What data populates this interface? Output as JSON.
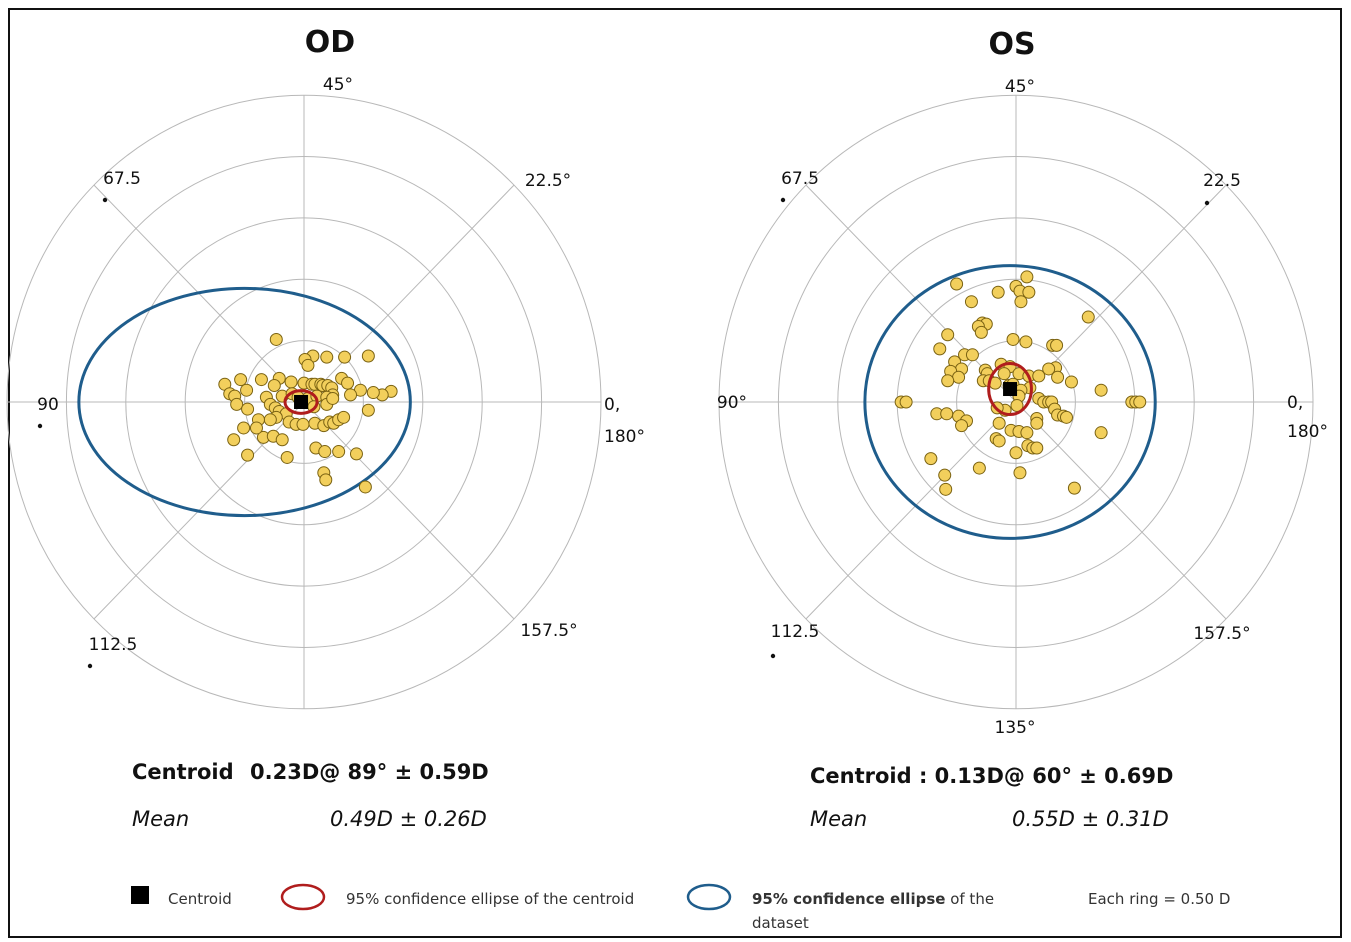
{
  "chart_data": [
    {
      "type": "scatter",
      "coordinate_system": "double-angle polar (astigmatism vector plot)",
      "title": "OD",
      "angle_labels": {
        "a0": "0,",
        "a180": "180°",
        "a22_5": "22.5°",
        "a45": "45°",
        "a67_5": "67.5",
        "a90": "90",
        "a112_5": "112.5",
        "a135": "",
        "a157_5": "157.5°"
      },
      "rings": 5,
      "ring_step_D": 0.5,
      "centroid": {
        "x": -0.03,
        "y": 0.0
      },
      "centroid_ellipse": {
        "rx": 0.06,
        "ry": 0.04
      },
      "dataset_ellipse": {
        "cx": -0.3,
        "cy": 0.0,
        "rx": 1.37,
        "ry": 0.9
      },
      "points": [
        [
          -0.28,
          0.53
        ],
        [
          0.09,
          0.39
        ],
        [
          0.23,
          0.38
        ],
        [
          0.01,
          0.36
        ],
        [
          0.04,
          0.31
        ],
        [
          0.41,
          0.38
        ],
        [
          0.65,
          0.39
        ],
        [
          -0.64,
          0.19
        ],
        [
          -0.43,
          0.19
        ],
        [
          -0.25,
          0.2
        ],
        [
          -0.13,
          0.17
        ],
        [
          -0.3,
          0.14
        ],
        [
          0.0,
          0.16
        ],
        [
          0.08,
          0.15
        ],
        [
          0.11,
          0.15
        ],
        [
          0.17,
          0.15
        ],
        [
          0.19,
          0.14
        ],
        [
          0.24,
          0.14
        ],
        [
          0.28,
          0.12
        ],
        [
          0.38,
          0.2
        ],
        [
          0.44,
          0.16
        ],
        [
          0.57,
          0.1
        ],
        [
          0.47,
          0.06
        ],
        [
          0.88,
          0.09
        ],
        [
          0.79,
          0.06
        ],
        [
          0.7,
          0.08
        ],
        [
          0.29,
          0.06
        ],
        [
          -0.8,
          0.15
        ],
        [
          -0.75,
          0.07
        ],
        [
          -0.58,
          0.1
        ],
        [
          -0.7,
          0.05
        ],
        [
          -0.68,
          -0.02
        ],
        [
          -0.57,
          -0.06
        ],
        [
          -0.38,
          0.04
        ],
        [
          -0.34,
          -0.02
        ],
        [
          -0.22,
          0.05
        ],
        [
          -0.12,
          0.07
        ],
        [
          -0.06,
          0.04
        ],
        [
          0.04,
          0.03
        ],
        [
          0.13,
          0.05
        ],
        [
          0.23,
          0.04
        ],
        [
          0.23,
          -0.02
        ],
        [
          0.29,
          0.03
        ],
        [
          0.1,
          -0.04
        ],
        [
          -0.29,
          -0.05
        ],
        [
          -0.25,
          -0.08
        ],
        [
          -0.18,
          -0.1
        ],
        [
          -0.28,
          -0.13
        ],
        [
          -0.34,
          -0.15
        ],
        [
          -0.46,
          -0.15
        ],
        [
          -0.61,
          -0.22
        ],
        [
          -0.41,
          -0.3
        ],
        [
          -0.15,
          -0.17
        ],
        [
          -0.08,
          -0.19
        ],
        [
          -0.01,
          -0.19
        ],
        [
          0.11,
          -0.18
        ],
        [
          0.2,
          -0.2
        ],
        [
          0.26,
          -0.17
        ],
        [
          0.3,
          -0.18
        ],
        [
          0.35,
          -0.15
        ],
        [
          0.4,
          -0.13
        ],
        [
          0.65,
          -0.07
        ],
        [
          -0.48,
          -0.22
        ],
        [
          -0.71,
          -0.32
        ],
        [
          -0.31,
          -0.29
        ],
        [
          -0.22,
          -0.32
        ],
        [
          0.12,
          -0.39
        ],
        [
          0.21,
          -0.42
        ],
        [
          0.53,
          -0.44
        ],
        [
          -0.57,
          -0.45
        ],
        [
          -0.17,
          -0.47
        ],
        [
          0.35,
          -0.42
        ],
        [
          0.2,
          -0.6
        ],
        [
          0.22,
          -0.66
        ],
        [
          0.62,
          -0.72
        ]
      ],
      "stats": {
        "centroid_label": "Centroid",
        "centroid_value": "0.23D@ 89°  ± 0.59D",
        "mean_label": "Mean",
        "mean_value": "0.49D ± 0.26D"
      }
    },
    {
      "type": "scatter",
      "coordinate_system": "double-angle polar (astigmatism vector plot)",
      "title": "OS",
      "angle_labels": {
        "a0": "0,",
        "a180": "180°",
        "a22_5": "22.5",
        "a45": "45°",
        "a67_5": "67.5",
        "a90": "90°",
        "a112_5": "112.5",
        "a135": "135°",
        "a157_5": "157.5°"
      },
      "rings": 5,
      "ring_step_D": 0.5,
      "centroid": {
        "x": -0.06,
        "y": 0.11
      },
      "centroid_ellipse": {
        "rx": 0.08,
        "ry": 0.09
      },
      "dataset_ellipse": {
        "cx": -0.03,
        "cy": 0.0,
        "rx": 1.2,
        "ry": 1.08
      },
      "points": [
        [
          0.11,
          1.06
        ],
        [
          -0.6,
          1.0
        ],
        [
          0.0,
          0.98
        ],
        [
          0.04,
          0.94
        ],
        [
          0.13,
          0.93
        ],
        [
          -0.18,
          0.93
        ],
        [
          -0.45,
          0.85
        ],
        [
          0.05,
          0.85
        ],
        [
          0.73,
          0.72
        ],
        [
          -0.34,
          0.67
        ],
        [
          -0.3,
          0.66
        ],
        [
          -0.38,
          0.64
        ],
        [
          -0.35,
          0.59
        ],
        [
          -0.69,
          0.57
        ],
        [
          -0.03,
          0.53
        ],
        [
          0.1,
          0.51
        ],
        [
          0.37,
          0.48
        ],
        [
          0.41,
          0.48
        ],
        [
          -0.77,
          0.45
        ],
        [
          -0.52,
          0.4
        ],
        [
          -0.44,
          0.4
        ],
        [
          -0.62,
          0.34
        ],
        [
          -0.15,
          0.32
        ],
        [
          -0.06,
          0.3
        ],
        [
          0.4,
          0.29
        ],
        [
          0.33,
          0.28
        ],
        [
          -0.31,
          0.27
        ],
        [
          -0.29,
          0.24
        ],
        [
          -0.12,
          0.24
        ],
        [
          0.03,
          0.24
        ],
        [
          0.13,
          0.22
        ],
        [
          0.23,
          0.22
        ],
        [
          -0.55,
          0.28
        ],
        [
          -0.66,
          0.26
        ],
        [
          -0.58,
          0.21
        ],
        [
          -0.69,
          0.18
        ],
        [
          0.56,
          0.17
        ],
        [
          -0.33,
          0.18
        ],
        [
          -0.27,
          0.18
        ],
        [
          -0.21,
          0.16
        ],
        [
          -0.07,
          0.14
        ],
        [
          -0.03,
          0.15
        ],
        [
          0.14,
          0.12
        ],
        [
          0.05,
          0.1
        ],
        [
          0.42,
          0.21
        ],
        [
          0.86,
          0.1
        ],
        [
          -1.16,
          0.0
        ],
        [
          -1.11,
          0.0
        ],
        [
          1.17,
          0.0
        ],
        [
          1.21,
          0.0
        ],
        [
          1.25,
          0.0
        ],
        [
          0.03,
          0.05
        ],
        [
          0.01,
          -0.03
        ],
        [
          0.23,
          0.03
        ],
        [
          0.28,
          0.0
        ],
        [
          0.33,
          0.0
        ],
        [
          0.36,
          0.0
        ],
        [
          -0.8,
          -0.1
        ],
        [
          -0.7,
          -0.1
        ],
        [
          -0.58,
          -0.12
        ],
        [
          -0.5,
          -0.16
        ],
        [
          -0.11,
          -0.07
        ],
        [
          -0.19,
          -0.05
        ],
        [
          0.39,
          -0.06
        ],
        [
          0.42,
          -0.11
        ],
        [
          0.48,
          -0.12
        ],
        [
          0.51,
          -0.13
        ],
        [
          0.21,
          -0.14
        ],
        [
          0.21,
          -0.18
        ],
        [
          -0.55,
          -0.2
        ],
        [
          -0.17,
          -0.18
        ],
        [
          -0.05,
          -0.24
        ],
        [
          0.03,
          -0.25
        ],
        [
          0.11,
          -0.26
        ],
        [
          0.86,
          -0.26
        ],
        [
          -0.2,
          -0.31
        ],
        [
          -0.17,
          -0.33
        ],
        [
          0.12,
          -0.37
        ],
        [
          0.17,
          -0.39
        ],
        [
          0.21,
          -0.39
        ],
        [
          -0.86,
          -0.48
        ],
        [
          -0.37,
          -0.56
        ],
        [
          0.04,
          -0.6
        ],
        [
          0.0,
          -0.43
        ],
        [
          -0.72,
          -0.62
        ],
        [
          -0.71,
          -0.74
        ],
        [
          0.59,
          -0.73
        ]
      ],
      "stats": {
        "centroid_label": "Centroid : 0.13D@ 60°  ± 0.69D",
        "centroid_value": "",
        "mean_label": "Mean",
        "mean_value": "0.55D ± 0.31D"
      }
    }
  ],
  "legend": {
    "centroid_label": "Centroid",
    "centroid_ellipse_label": "95% confidence ellipse of  the centroid",
    "dataset_ellipse_label_bold": "95% confidence ellipse",
    "dataset_ellipse_label_rest": " of the",
    "dataset_ellipse_label_line2": "dataset",
    "ring_label": "Each ring = 0.50 D"
  },
  "colors": {
    "point_fill": "#f2cf5c",
    "point_stroke": "#7a6212",
    "dataset_ellipse": "#1f5d8c",
    "centroid_ellipse": "#b01d1d",
    "centroid_marker": "#000000",
    "grid": "#b8b8b8"
  }
}
